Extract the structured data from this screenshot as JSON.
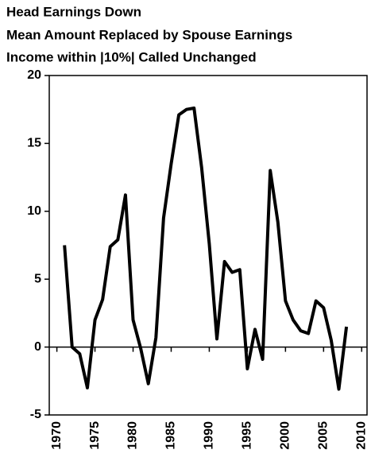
{
  "chart_data": {
    "type": "line",
    "title": [
      "Head Earnings Down",
      "Mean Amount Replaced by Spouse Earnings",
      "Income within |10%| Called Unchanged"
    ],
    "x": [
      1971,
      1972,
      1973,
      1974,
      1975,
      1976,
      1977,
      1978,
      1979,
      1980,
      1981,
      1982,
      1983,
      1984,
      1985,
      1986,
      1987,
      1988,
      1989,
      1990,
      1991,
      1992,
      1993,
      1994,
      1995,
      1996,
      1997,
      1998,
      1999,
      2000,
      2001,
      2002,
      2003,
      2004,
      2005,
      2006,
      2007,
      2008
    ],
    "values": [
      7.5,
      0,
      -0.5,
      -3,
      2,
      3.5,
      7.4,
      7.9,
      11.2,
      2,
      -0.1,
      -2.7,
      0.7,
      9.5,
      13.5,
      17.1,
      17.5,
      17.6,
      13.2,
      7.6,
      0.6,
      6.3,
      5.5,
      5.7,
      -1.6,
      1.3,
      -0.9,
      13,
      9.2,
      3.4,
      2,
      1.2,
      1,
      3.4,
      2.9,
      0.5,
      -3.1,
      1.5
    ],
    "color": "#000000",
    "xlim": [
      1969,
      2010.7
    ],
    "xticks": [
      1970,
      1975,
      1980,
      1985,
      1990,
      1995,
      2000,
      2005,
      2010
    ],
    "ylim": [
      -5,
      20
    ],
    "yticks": [
      20,
      15,
      10,
      5,
      0,
      -5
    ]
  }
}
